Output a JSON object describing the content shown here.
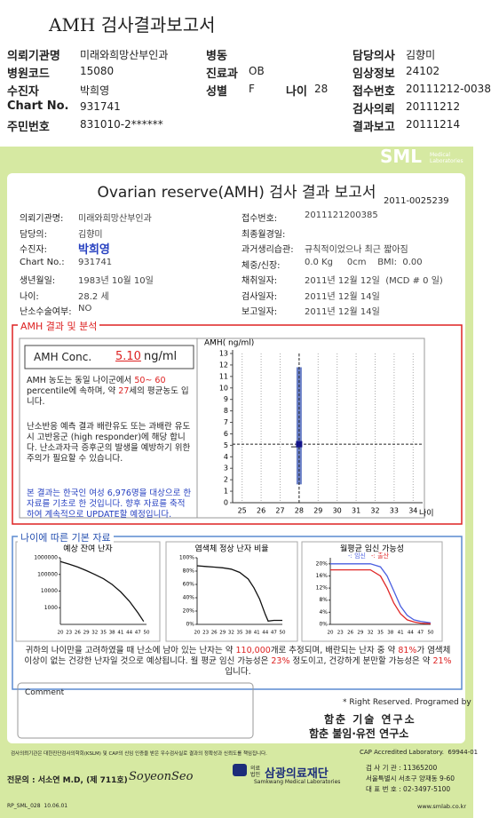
{
  "header": {
    "title": "AMH 검사결과보고서",
    "rows": [
      [
        {
          "label": "의뢰기관명",
          "value": "미래와희망산부인과"
        },
        {
          "label": "병동"
        },
        {
          "label": "담당의사",
          "value": "김향미"
        }
      ],
      [
        {
          "label": "병원코드",
          "value": "15080"
        },
        {
          "label": "진료과",
          "value": "OB"
        },
        {
          "label": "임상정보",
          "value": "24102"
        }
      ],
      [
        {
          "label": "수진자",
          "value": "박희영"
        },
        {
          "label": "성별",
          "value": "F"
        },
        {
          "label": "나이",
          "value": "28"
        },
        {
          "label": "접수번호",
          "value": "20111212-0038"
        }
      ],
      [
        {
          "label": "Chart No.",
          "value": "931741"
        },
        {
          "label": "검사의뢰",
          "value": "20111212"
        }
      ],
      [
        {
          "label": "주민번호",
          "value": "831010-2******"
        },
        {
          "label": "결과보고",
          "value": "20111214"
        }
      ]
    ]
  },
  "report": {
    "logo": "SML",
    "logo_sub": "Medical Laboratories",
    "title": "Ovarian reserve(AMH) 검사 결과 보고서",
    "id": "2011-0025239",
    "left": [
      {
        "label": "의뢰기관명:",
        "value": "미래와희망산부인과"
      },
      {
        "label": "담당의:",
        "value": "김향미"
      },
      {
        "label": "수진자:",
        "value": "박희영"
      },
      {
        "label": "Chart No.:",
        "value": "931741"
      },
      {
        "label": "생년월일:",
        "value": "1983년 10월 10일"
      },
      {
        "label": "나이:",
        "value": "28.2 세"
      },
      {
        "label": "난소수술여부:",
        "value": "NO"
      }
    ],
    "right": [
      {
        "label": "접수번호:",
        "value": "2011121200385"
      },
      {
        "label": "최종월경일:"
      },
      {
        "label": "과거생리습관:",
        "value": "규칙적이었으나 최근 짧아짐"
      },
      {
        "label": "체중/신장:",
        "value": "0.0 Kg     0cm    BMI:  0.00"
      },
      {
        "label": "채취일자:",
        "value": "2011년 12월 12일  (MCD # 0 일)"
      },
      {
        "label": "검사일자:",
        "value": "2011년 12월 14일"
      },
      {
        "label": "보고일자:",
        "value": "2011년 12월 14일"
      }
    ]
  },
  "analysis": {
    "title": "AMH 결과 및 분석",
    "conc_label": "AMH Conc.",
    "conc_value": "5.10",
    "conc_unit": "ng/ml",
    "para1": [
      {
        "text": "AMH 농도는 동일 나이군에서 "
      },
      {
        "text": "50~ 60",
        "hl": true
      },
      {
        "text": " percentile에 속하며, 약 "
      },
      {
        "text": "27",
        "hl": true
      },
      {
        "text": "세의 평균농도 입니다."
      }
    ],
    "para2": "난소반응 예측 결과 배란유도 또는 과배란 유도시 고반응군 (high responder)에 해당 합니다. 난소과자극 증후군의 발생을 예방하기 위한 주의가 필요할 수 있습니다.",
    "para3": "본 결과는 한국인 여성 6,976명을 대상으로 한 자료를 기초로 한 것입니다. 향후 자료를 축적하여 계속적으로 UPDATE할 예정입니다."
  },
  "basics": {
    "title": "나이에 따른 기본 자료",
    "summary": [
      {
        "text": "귀하의 나이만을 고려하였을 때 난소에 남아 있는 난자는 약 "
      },
      {
        "text": "110,000",
        "hl": true
      },
      {
        "text": "개로 추정되며, 배란되는 난자 중 약 "
      },
      {
        "text": "81%",
        "hl": true
      },
      {
        "text": "가 염색체이상이 없는 건강한 난자일 것으로 예상됩니다. 월 평균 임신 가능성은 "
      },
      {
        "text": "23%",
        "hl": true
      },
      {
        "text": " 정도이고, 건강하게 분만할 가능성은 약 "
      },
      {
        "text": "21%",
        "hl": true
      },
      {
        "text": "입니다."
      }
    ]
  },
  "comment": {
    "label": "Comment"
  },
  "credits": {
    "rights": "* Right Reserved. Programed by",
    "lab1": "함춘 기술 연구소",
    "lab2": "함춘 불임·유전 연구소"
  },
  "footer": {
    "notice": "검사의뢰기관은 대한진단검사의학회(KSLM) 및 CAP의 신임 인증을 받은 우수검사실로 결과의 정확성과 신뢰도를 책임집니다.",
    "cap": "CAP Accredited Laboratory.  69944-01",
    "doctor": "전문의 : 서소연 M.D, (제 711호)",
    "signature": "SoyeonSeo",
    "org_prefix": "의료법인",
    "org": "삼광의료재단",
    "org_en": "Samkwang Medical Laboratories",
    "code": "검 사 기 관 : 11365200",
    "address": "서울특별시 서초구 양재동 9-60",
    "phone": "대 표 번 호 : 02-3497-5100",
    "form": "RP_SML_028  10.06.01",
    "url": "www.smlab.co.kr"
  },
  "chart_data": [
    {
      "type": "range",
      "ylabel": "AMH( ng/ml)",
      "xlabel": "나이",
      "x": [
        28
      ],
      "low": [
        1.6
      ],
      "high": [
        11.8
      ],
      "value": [
        5.1
      ],
      "color": "#6a7fc6",
      "point_color": "#14148a",
      "xlim": [
        24.5,
        34.5
      ],
      "xticks": [
        25,
        26,
        27,
        28,
        29,
        30,
        31,
        32,
        33,
        34
      ],
      "ylim": [
        0,
        13
      ],
      "yticks": [
        0,
        1,
        2,
        3,
        4,
        5,
        6,
        7,
        8,
        9,
        10,
        11,
        12,
        13
      ],
      "grid": true
    },
    {
      "type": "line",
      "title": "예상 잔여 난자",
      "log_y": true,
      "xlim": [
        20,
        50
      ],
      "xticks": [
        20,
        23,
        26,
        29,
        32,
        35,
        38,
        41,
        44,
        47,
        50
      ],
      "ylim": [
        100,
        1000000
      ],
      "yticks": [
        1000,
        10000,
        100000,
        1000000
      ],
      "x": [
        20,
        23,
        26,
        29,
        32,
        35,
        38,
        41,
        44,
        47,
        49
      ],
      "series": [
        {
          "color": "#111111",
          "values": [
            600000,
            420000,
            280000,
            170000,
            100000,
            55000,
            25000,
            9000,
            2500,
            500,
            150
          ]
        }
      ]
    },
    {
      "type": "line",
      "title": "염색체 정상 난자 비율",
      "xlim": [
        20,
        50
      ],
      "xticks": [
        20,
        23,
        26,
        29,
        32,
        35,
        38,
        41,
        44,
        47,
        50
      ],
      "ylim": [
        0,
        100
      ],
      "yticks": [
        {
          "value": 0,
          "label": "0%"
        },
        {
          "value": 20,
          "label": "20%"
        },
        {
          "value": 40,
          "label": "40%"
        },
        {
          "value": 60,
          "label": "60%"
        },
        {
          "value": 80,
          "label": "80%"
        },
        {
          "value": 100,
          "label": "100%"
        }
      ],
      "x": [
        20,
        23,
        26,
        29,
        32,
        35,
        38,
        40,
        42,
        44,
        45,
        47,
        50
      ],
      "series": [
        {
          "color": "#111111",
          "values": [
            88,
            87,
            86,
            85,
            83,
            78,
            68,
            55,
            38,
            15,
            5,
            6,
            6
          ]
        }
      ]
    },
    {
      "type": "line",
      "title": "월평균 임신 가능성",
      "xlim": [
        20,
        50
      ],
      "xticks": [
        20,
        23,
        26,
        29,
        32,
        35,
        38,
        41,
        44,
        47,
        50
      ],
      "ylim": [
        0,
        22
      ],
      "yticks": [
        {
          "value": 0,
          "label": "0%"
        },
        {
          "value": 4,
          "label": "4%"
        },
        {
          "value": 8,
          "label": "8%"
        },
        {
          "value": 12,
          "label": "12%"
        },
        {
          "value": 16,
          "label": "16%"
        },
        {
          "value": 20,
          "label": "20%"
        }
      ],
      "x": [
        20,
        23,
        26,
        29,
        32,
        35,
        37,
        39,
        41,
        43,
        45,
        47,
        50
      ],
      "series": [
        {
          "name": "-: 임신",
          "color": "#4a5fe0",
          "values": [
            20,
            20,
            20,
            20,
            20,
            19,
            16,
            11,
            6,
            3,
            1.5,
            1,
            0.5
          ]
        },
        {
          "name": "-: 출산",
          "color": "#e02828",
          "values": [
            18,
            18,
            18,
            18,
            18,
            16,
            12,
            7,
            3.5,
            1.5,
            0.8,
            0.4,
            0.2
          ]
        }
      ]
    }
  ]
}
